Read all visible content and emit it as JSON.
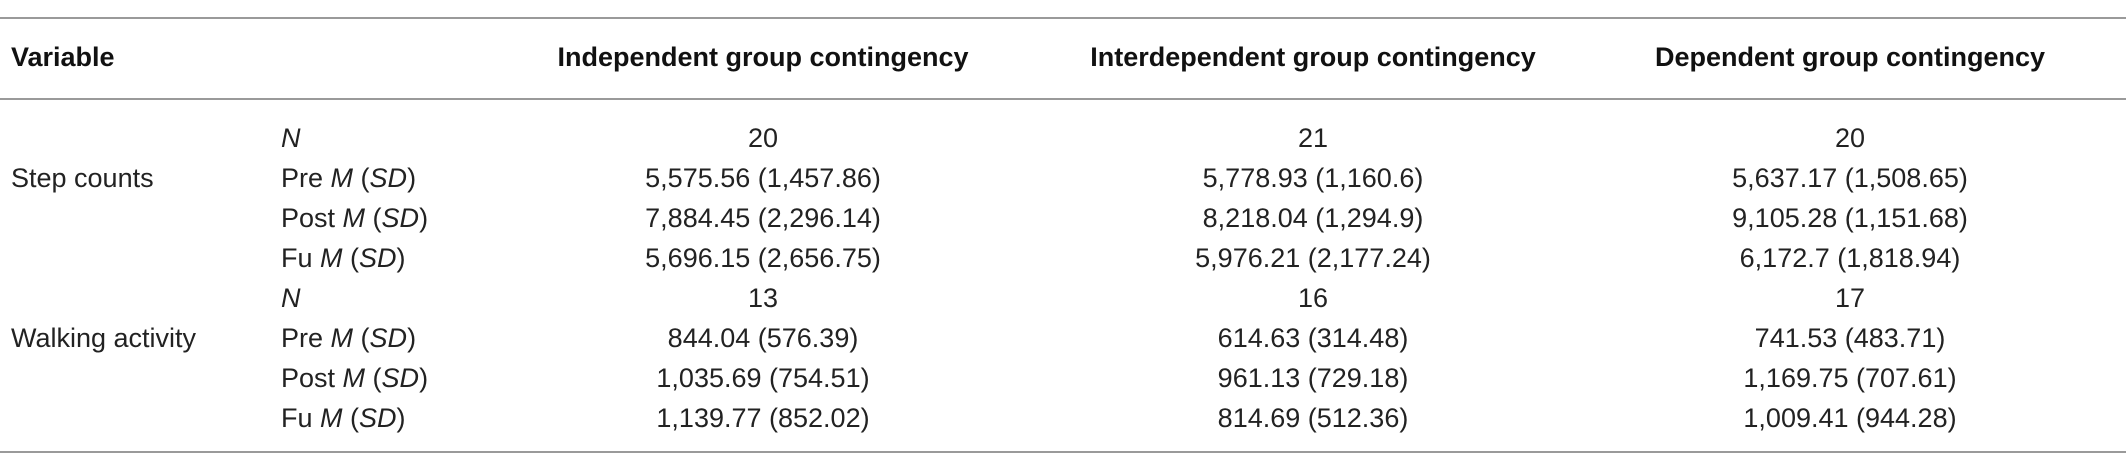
{
  "header": {
    "variable": "Variable",
    "col1": "Independent group contingency",
    "col2": "Interdependent group contingency",
    "col3": "Dependent group contingency"
  },
  "rows": [
    {
      "variable": "",
      "stat_prefix": "",
      "stat_m": "",
      "stat_sd": "",
      "stat_n": "N",
      "v1": "20",
      "v2": "21",
      "v3": "20"
    },
    {
      "variable": "Step counts",
      "stat_prefix": "Pre",
      "stat_m": "M",
      "stat_sd": "SD",
      "stat_n": "",
      "v1": "5,575.56 (1,457.86)",
      "v2": "5,778.93 (1,160.6)",
      "v3": "5,637.17 (1,508.65)"
    },
    {
      "variable": "",
      "stat_prefix": "Post",
      "stat_m": "M",
      "stat_sd": "SD",
      "stat_n": "",
      "v1": "7,884.45 (2,296.14)",
      "v2": "8,218.04 (1,294.9)",
      "v3": "9,105.28 (1,151.68)"
    },
    {
      "variable": "",
      "stat_prefix": "Fu",
      "stat_m": "M",
      "stat_sd": "SD",
      "stat_n": "",
      "v1": "5,696.15 (2,656.75)",
      "v2": "5,976.21 (2,177.24)",
      "v3": "6,172.7 (1,818.94)"
    },
    {
      "variable": "",
      "stat_prefix": "",
      "stat_m": "",
      "stat_sd": "",
      "stat_n": "N",
      "v1": "13",
      "v2": "16",
      "v3": "17"
    },
    {
      "variable": "Walking activity",
      "stat_prefix": "Pre",
      "stat_m": "M",
      "stat_sd": "SD",
      "stat_n": "",
      "v1": "844.04 (576.39)",
      "v2": "614.63 (314.48)",
      "v3": "741.53 (483.71)"
    },
    {
      "variable": "",
      "stat_prefix": "Post",
      "stat_m": "M",
      "stat_sd": "SD",
      "stat_n": "",
      "v1": "1,035.69 (754.51)",
      "v2": "961.13 (729.18)",
      "v3": "1,169.75 (707.61)"
    },
    {
      "variable": "",
      "stat_prefix": "Fu",
      "stat_m": "M",
      "stat_sd": "SD",
      "stat_n": "",
      "v1": "1,139.77 (852.02)",
      "v2": "814.69 (512.36)",
      "v3": "1,009.41 (944.28)"
    }
  ]
}
